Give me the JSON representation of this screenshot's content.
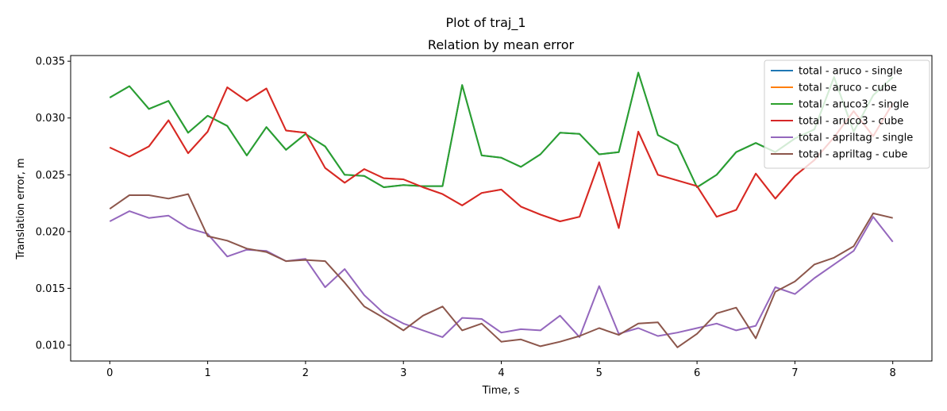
{
  "chart_data": {
    "type": "line",
    "suptitle": "Plot of traj_1",
    "title": "Relation by mean error",
    "xlabel": "Time, s",
    "ylabel": "Translation error, m",
    "xlim": [
      -0.4,
      8.4
    ],
    "ylim": [
      0.0086,
      0.0355
    ],
    "xticks": [
      0,
      1,
      2,
      3,
      4,
      5,
      6,
      7,
      8
    ],
    "yticks": [
      0.01,
      0.015,
      0.02,
      0.025,
      0.03,
      0.035
    ],
    "ytick_labels": [
      "0.010",
      "0.015",
      "0.020",
      "0.025",
      "0.030",
      "0.035"
    ],
    "grid": false,
    "legend_position": "top-right",
    "x": [
      0,
      0.2,
      0.4,
      0.6,
      0.8,
      1.0,
      1.2,
      1.4,
      1.6,
      1.8,
      2.0,
      2.2,
      2.4,
      2.6,
      2.8,
      3.0,
      3.2,
      3.4,
      3.6,
      3.8,
      4.0,
      4.2,
      4.4,
      4.6,
      4.8,
      5.0,
      5.2,
      5.4,
      5.6,
      5.8,
      6.0,
      6.2,
      6.4,
      6.6,
      6.8,
      7.0,
      7.2,
      7.4,
      7.6,
      7.8,
      8.0
    ],
    "series": [
      {
        "name": "total - aruco - single",
        "color": "#1f77b4",
        "values": [
          0.0318,
          0.0328,
          0.0308,
          0.0315,
          0.0287,
          0.0302,
          0.0293,
          0.0267,
          0.0292,
          0.0272,
          0.0286,
          0.0275,
          0.025,
          0.0249,
          0.0239,
          0.0241,
          0.024,
          0.024,
          0.0329,
          0.0267,
          0.0265,
          0.0257,
          0.0268,
          0.0287,
          0.0286,
          0.0268,
          0.027,
          0.034,
          0.0285,
          0.0276,
          0.0239,
          0.025,
          0.027,
          0.0278,
          0.027,
          0.0282,
          0.029,
          0.0336,
          0.0288,
          0.032,
          0.0336
        ]
      },
      {
        "name": "total - aruco - cube",
        "color": "#ff7f0e",
        "values": [
          0.0274,
          0.0266,
          0.0275,
          0.0298,
          0.0269,
          0.0288,
          0.0327,
          0.0315,
          0.0326,
          0.0289,
          0.0287,
          0.0256,
          0.0243,
          0.0255,
          0.0247,
          0.0246,
          0.0239,
          0.0233,
          0.0223,
          0.0234,
          0.0237,
          0.0222,
          0.0215,
          0.0209,
          0.0213,
          0.0261,
          0.0203,
          0.0288,
          0.025,
          0.0245,
          0.024,
          0.0213,
          0.0219,
          0.0251,
          0.0229,
          0.0249,
          0.0263,
          0.0283,
          0.0306,
          0.0284,
          0.0313
        ]
      },
      {
        "name": "total - aruco3 - single",
        "color": "#2ca02c",
        "values": [
          0.0318,
          0.0328,
          0.0308,
          0.0315,
          0.0287,
          0.0302,
          0.0293,
          0.0267,
          0.0292,
          0.0272,
          0.0286,
          0.0275,
          0.025,
          0.0249,
          0.0239,
          0.0241,
          0.024,
          0.024,
          0.0329,
          0.0267,
          0.0265,
          0.0257,
          0.0268,
          0.0287,
          0.0286,
          0.0268,
          0.027,
          0.034,
          0.0285,
          0.0276,
          0.0239,
          0.025,
          0.027,
          0.0278,
          0.027,
          0.0282,
          0.029,
          0.0336,
          0.0288,
          0.032,
          0.0336
        ]
      },
      {
        "name": "total - aruco3 - cube",
        "color": "#d62728",
        "values": [
          0.0274,
          0.0266,
          0.0275,
          0.0298,
          0.0269,
          0.0288,
          0.0327,
          0.0315,
          0.0326,
          0.0289,
          0.0287,
          0.0256,
          0.0243,
          0.0255,
          0.0247,
          0.0246,
          0.0239,
          0.0233,
          0.0223,
          0.0234,
          0.0237,
          0.0222,
          0.0215,
          0.0209,
          0.0213,
          0.0261,
          0.0203,
          0.0288,
          0.025,
          0.0245,
          0.024,
          0.0213,
          0.0219,
          0.0251,
          0.0229,
          0.0249,
          0.0263,
          0.0283,
          0.0306,
          0.0284,
          0.0313
        ]
      },
      {
        "name": "total - apriltag - single",
        "color": "#9467bd",
        "values": [
          0.0209,
          0.0218,
          0.0212,
          0.0214,
          0.0203,
          0.0198,
          0.0178,
          0.0184,
          0.0183,
          0.0174,
          0.0176,
          0.0151,
          0.0167,
          0.0144,
          0.0128,
          0.0119,
          0.0113,
          0.0107,
          0.0124,
          0.0123,
          0.0111,
          0.0114,
          0.0113,
          0.0126,
          0.0107,
          0.0152,
          0.011,
          0.0115,
          0.0108,
          0.0111,
          0.0115,
          0.0119,
          0.0113,
          0.0117,
          0.0151,
          0.0145,
          0.0159,
          0.0171,
          0.0183,
          0.0213,
          0.0191
        ]
      },
      {
        "name": "total - apriltag - cube",
        "color": "#8c564b",
        "values": [
          0.022,
          0.0232,
          0.0232,
          0.0229,
          0.0233,
          0.0196,
          0.0192,
          0.0185,
          0.0182,
          0.0174,
          0.0175,
          0.0174,
          0.0155,
          0.0134,
          0.0124,
          0.0113,
          0.0126,
          0.0134,
          0.0113,
          0.0119,
          0.0103,
          0.0105,
          0.0099,
          0.0103,
          0.0108,
          0.0115,
          0.0109,
          0.0119,
          0.012,
          0.0098,
          0.011,
          0.0128,
          0.0133,
          0.0106,
          0.0147,
          0.0156,
          0.0171,
          0.0177,
          0.0187,
          0.0216,
          0.0212
        ]
      }
    ]
  }
}
